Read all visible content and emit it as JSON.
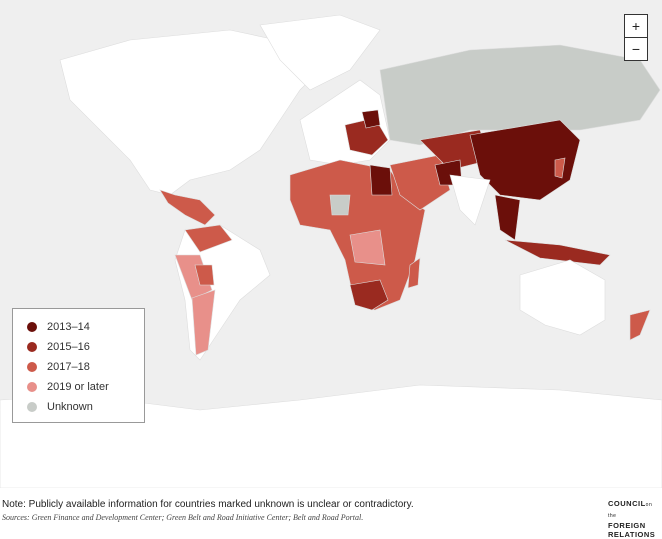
{
  "zoom": {
    "in": "+",
    "out": "−"
  },
  "legend": [
    {
      "name": "2013–14",
      "color": "#6b0f0a"
    },
    {
      "name": "2015–16",
      "color": "#9a2a20"
    },
    {
      "name": "2017–18",
      "color": "#cd5a4a"
    },
    {
      "name": "2019 or later",
      "color": "#e8908a"
    },
    {
      "name": "Unknown",
      "color": "#c8ccc8"
    }
  ],
  "note": "Note: Publicly available information for countries marked unknown is unclear or contradictory.",
  "sources": "Sources: Green Finance and Development Center; Green Belt and Road Initiative Center; Belt and Road Portal.",
  "logo": {
    "line1": "COUNCIL",
    "small": "on the",
    "line2": "FOREIGN",
    "line3": "RELATIONS"
  }
}
